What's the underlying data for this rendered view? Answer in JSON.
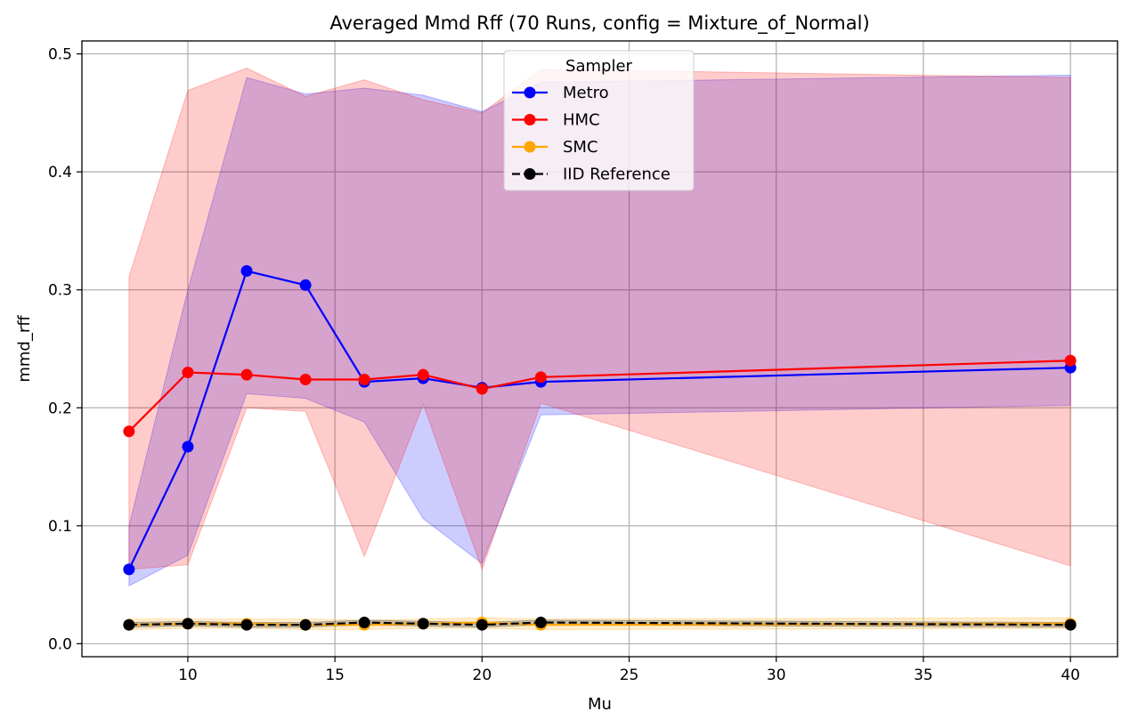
{
  "chart_data": {
    "type": "line",
    "title": "Averaged Mmd Rff (70 Runs, config = Mixture_of_Normal)",
    "xlabel": "Mu",
    "ylabel": "mmd_rff",
    "xlim": [
      6.4,
      41.6
    ],
    "ylim": [
      -0.011,
      0.511
    ],
    "xticks": [
      10,
      15,
      20,
      25,
      30,
      35,
      40
    ],
    "yticks": [
      0.0,
      0.1,
      0.2,
      0.3,
      0.4,
      0.5
    ],
    "grid": true,
    "legend": {
      "title": "Sampler",
      "placement": "upper center"
    },
    "x": [
      8,
      10,
      12,
      14,
      16,
      18,
      20,
      22,
      40
    ],
    "series": [
      {
        "name": "Metro",
        "color": "#0000ff",
        "linestyle": "solid",
        "values": [
          0.063,
          0.167,
          0.316,
          0.304,
          0.222,
          0.225,
          0.217,
          0.222,
          0.234
        ],
        "band_lower": [
          0.049,
          0.075,
          0.212,
          0.208,
          0.188,
          0.106,
          0.068,
          0.194,
          0.202
        ],
        "band_upper": [
          0.1,
          0.3,
          0.48,
          0.466,
          0.471,
          0.465,
          0.451,
          0.476,
          0.482
        ]
      },
      {
        "name": "HMC",
        "color": "#ff0000",
        "linestyle": "solid",
        "values": [
          0.18,
          0.23,
          0.228,
          0.224,
          0.224,
          0.228,
          0.216,
          0.226,
          0.24
        ],
        "band_lower": [
          0.063,
          0.067,
          0.2,
          0.197,
          0.074,
          0.203,
          0.063,
          0.204,
          0.066
        ],
        "band_upper": [
          0.311,
          0.469,
          0.488,
          0.464,
          0.478,
          0.461,
          0.45,
          0.487,
          0.48
        ]
      },
      {
        "name": "SMC",
        "color": "#ffa500",
        "linestyle": "solid",
        "values": [
          0.016,
          0.017,
          0.017,
          0.016,
          0.016,
          0.017,
          0.018,
          0.016,
          0.017
        ],
        "band_lower": [
          0.012,
          0.013,
          0.013,
          0.012,
          0.012,
          0.013,
          0.013,
          0.012,
          0.013
        ],
        "band_upper": [
          0.021,
          0.021,
          0.021,
          0.021,
          0.02,
          0.021,
          0.022,
          0.021,
          0.022
        ]
      },
      {
        "name": "IID Reference",
        "color": "#000000",
        "linestyle": "dashed",
        "values": [
          0.016,
          0.017,
          0.016,
          0.016,
          0.018,
          0.017,
          0.016,
          0.018,
          0.016
        ],
        "band_lower": [
          0.014,
          0.015,
          0.014,
          0.014,
          0.016,
          0.015,
          0.014,
          0.016,
          0.014
        ],
        "band_upper": [
          0.018,
          0.019,
          0.018,
          0.018,
          0.02,
          0.019,
          0.018,
          0.02,
          0.018
        ]
      }
    ]
  }
}
